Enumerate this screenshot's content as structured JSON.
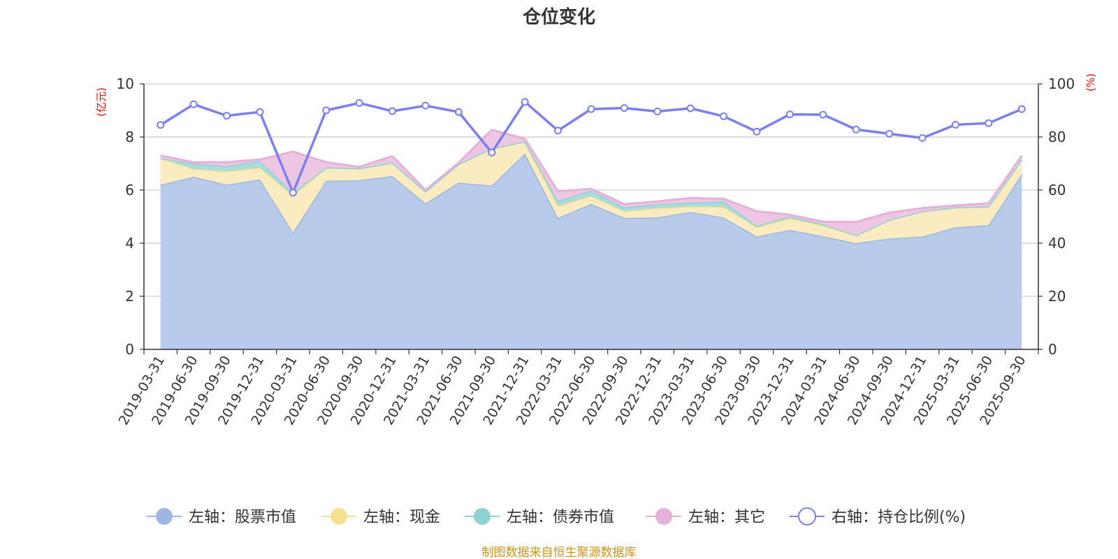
{
  "chart_data": {
    "type": "area",
    "title": "仓位变化",
    "left_axis": {
      "unit": "(亿元)",
      "ticks": [
        "0",
        "2",
        "4",
        "6",
        "8",
        "10"
      ],
      "ylim": [
        0,
        10
      ]
    },
    "right_axis": {
      "unit": "(%)",
      "ticks": [
        "0",
        "20",
        "40",
        "60",
        "80",
        "100"
      ],
      "ylim": [
        0,
        100
      ]
    },
    "categories": [
      "2019-03-31",
      "2019-06-30",
      "2019-09-30",
      "2019-12-31",
      "2020-03-31",
      "2020-06-30",
      "2020-09-30",
      "2020-12-31",
      "2021-03-31",
      "2021-06-30",
      "2021-09-30",
      "2021-12-31",
      "2022-03-31",
      "2022-06-30",
      "2022-09-30",
      "2022-12-31",
      "2023-03-31",
      "2023-06-30",
      "2023-09-30",
      "2023-12-31",
      "2024-03-31",
      "2024-06-30",
      "2024-09-30",
      "2024-12-31",
      "2025-03-31",
      "2025-06-30",
      "2025-09-30"
    ],
    "series": [
      {
        "name": "左轴：股票市值",
        "axis": "left",
        "kind": "area",
        "color": "#9db7e0",
        "fill": "#b8cbea",
        "values": [
          6.2,
          6.5,
          6.2,
          6.4,
          4.4,
          6.35,
          6.37,
          6.53,
          5.5,
          6.28,
          6.17,
          7.38,
          4.95,
          5.48,
          4.95,
          4.97,
          5.18,
          4.97,
          4.25,
          4.5,
          4.26,
          4.0,
          4.18,
          4.25,
          4.6,
          4.68,
          6.6
        ]
      },
      {
        "name": "左轴：现金",
        "axis": "left",
        "kind": "area",
        "color": "#f5e08e",
        "fill": "#faecc0",
        "values": [
          1.0,
          0.3,
          0.5,
          0.45,
          1.4,
          0.5,
          0.45,
          0.5,
          0.45,
          0.7,
          1.4,
          0.45,
          0.45,
          0.3,
          0.25,
          0.35,
          0.2,
          0.4,
          0.35,
          0.45,
          0.4,
          0.3,
          0.7,
          0.95,
          0.75,
          0.7,
          0.55
        ]
      },
      {
        "name": "左轴：债券市值",
        "axis": "left",
        "kind": "area",
        "color": "#8fd2d2",
        "fill": "#a8dcdc",
        "values": [
          0.0,
          0.2,
          0.2,
          0.25,
          0.1,
          0.0,
          0.0,
          0.0,
          0.0,
          0.0,
          0.0,
          0.0,
          0.2,
          0.2,
          0.15,
          0.15,
          0.15,
          0.2,
          0.05,
          0.05,
          0.05,
          0.0,
          0.0,
          0.0,
          0.0,
          0.0,
          0.0
        ]
      },
      {
        "name": "左轴：其它",
        "axis": "left",
        "kind": "area",
        "color": "#e4b2d8",
        "fill": "#edc6e3",
        "values": [
          0.1,
          0.05,
          0.15,
          0.05,
          1.55,
          0.2,
          0.05,
          0.25,
          0.05,
          0.05,
          0.7,
          0.1,
          0.35,
          0.07,
          0.12,
          0.1,
          0.17,
          0.1,
          0.55,
          0.07,
          0.1,
          0.5,
          0.27,
          0.12,
          0.07,
          0.12,
          0.15
        ]
      },
      {
        "name": "右轴：持仓比例(%)",
        "axis": "right",
        "kind": "line",
        "color": "#7b7ff0",
        "values": [
          84.5,
          92.3,
          88.0,
          89.4,
          59.0,
          90.0,
          92.8,
          89.7,
          91.8,
          89.4,
          74.1,
          93.2,
          82.4,
          90.5,
          90.9,
          89.6,
          90.8,
          87.8,
          82.0,
          88.5,
          88.4,
          82.8,
          81.2,
          79.6,
          84.6,
          85.2,
          90.5
        ]
      }
    ],
    "legend_position": "bottom-center",
    "grid": true
  },
  "footer": {
    "source": "制图数据来自恒生聚源数据库"
  }
}
